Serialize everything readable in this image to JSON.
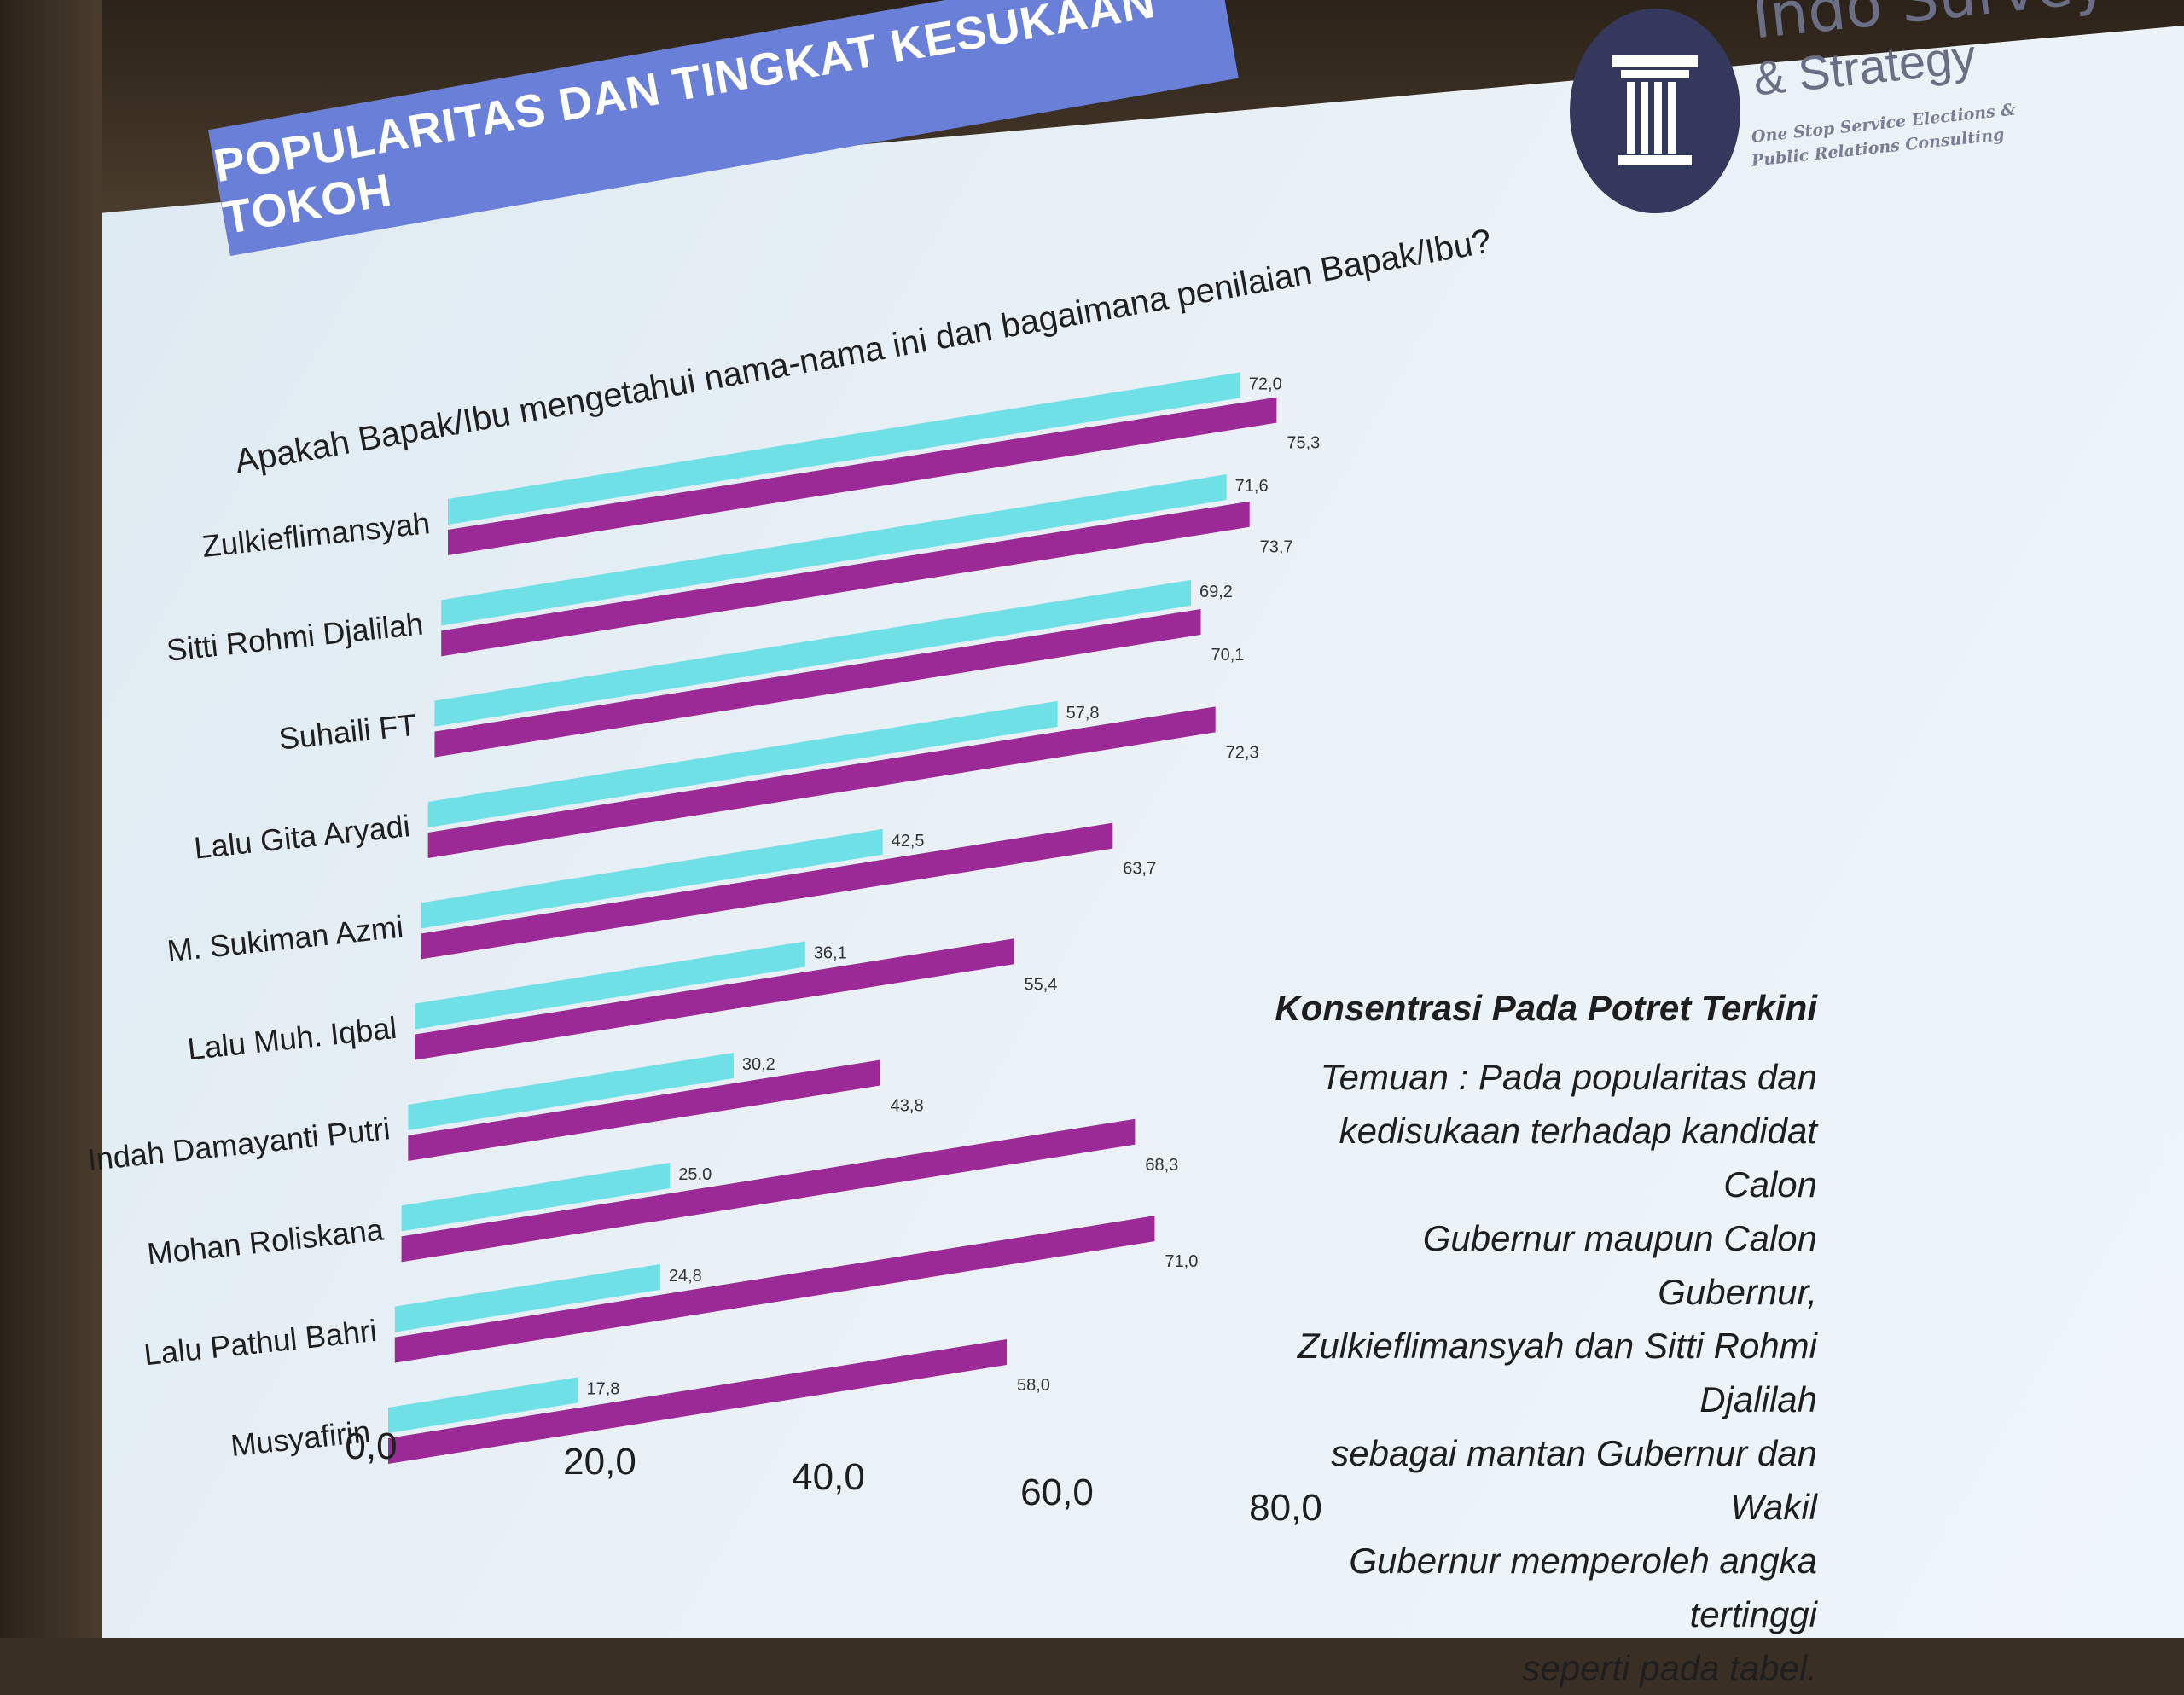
{
  "slide": {
    "title": "POPULARITAS DAN TINGKAT KESUKAAN TOKOH",
    "question": "Apakah Bapak/Ibu mengetahui nama-nama ini dan bagaimana penilaian Bapak/Ibu?"
  },
  "logo": {
    "name": "Indo Survey",
    "sub": "& Strategy",
    "tagline_1": "One Stop Service Elections &",
    "tagline_2": "Public Relations Consulting"
  },
  "note": {
    "heading": "Konsentrasi Pada Potret Terkini",
    "lines": [
      "Temuan : Pada popularitas dan",
      "kedisukaan terhadap kandidat Calon",
      "Gubernur maupun Calon Gubernur,",
      "Zulkieflimansyah dan Sitti Rohmi Djalilah",
      "sebagai mantan Gubernur dan Wakil",
      "Gubernur memperoleh angka tertinggi",
      "seperti pada tabel."
    ]
  },
  "colors": {
    "series_1": "#6fe0e6",
    "series_2": "#9b2a96",
    "title_bg": "#6a7fd8"
  },
  "chart_data": {
    "type": "bar",
    "orientation": "horizontal",
    "categories": [
      "Zulkieflimansyah",
      "Sitti Rohmi Djalilah",
      "Suhaili FT",
      "Lalu Gita Aryadi",
      "M. Sukiman Azmi",
      "Lalu Muh. Iqbal",
      "Indah Damayanti Putri",
      "Mohan Roliskana",
      "Lalu Pathul Bahri",
      "Musyafirin"
    ],
    "series": [
      {
        "values": [
          72.0,
          71.6,
          69.2,
          57.8,
          42.5,
          36.1,
          30.2,
          25.0,
          24.8,
          17.8
        ],
        "labels": [
          "72,0",
          "71,6",
          "69,2",
          "57,8",
          "42,5",
          "36,1",
          "30,2",
          "25,0",
          "24,8",
          "17,8"
        ]
      },
      {
        "values": [
          75.3,
          73.7,
          70.1,
          72.3,
          63.7,
          55.4,
          43.8,
          68.3,
          71.0,
          58.0
        ],
        "labels": [
          "75,3",
          "73,7",
          "70,1",
          "72,3",
          "63,7",
          "55,4",
          "43,8",
          "68,3",
          "71,0",
          "58,0"
        ]
      }
    ],
    "x_ticks": [
      {
        "value": 0,
        "label": "0,0"
      },
      {
        "value": 20,
        "label": "20,0"
      },
      {
        "value": 40,
        "label": "40,0"
      },
      {
        "value": 60,
        "label": "60,0"
      },
      {
        "value": 80,
        "label": "80,0"
      }
    ],
    "xlim": [
      0,
      80
    ],
    "legend": "none",
    "grid": false
  }
}
